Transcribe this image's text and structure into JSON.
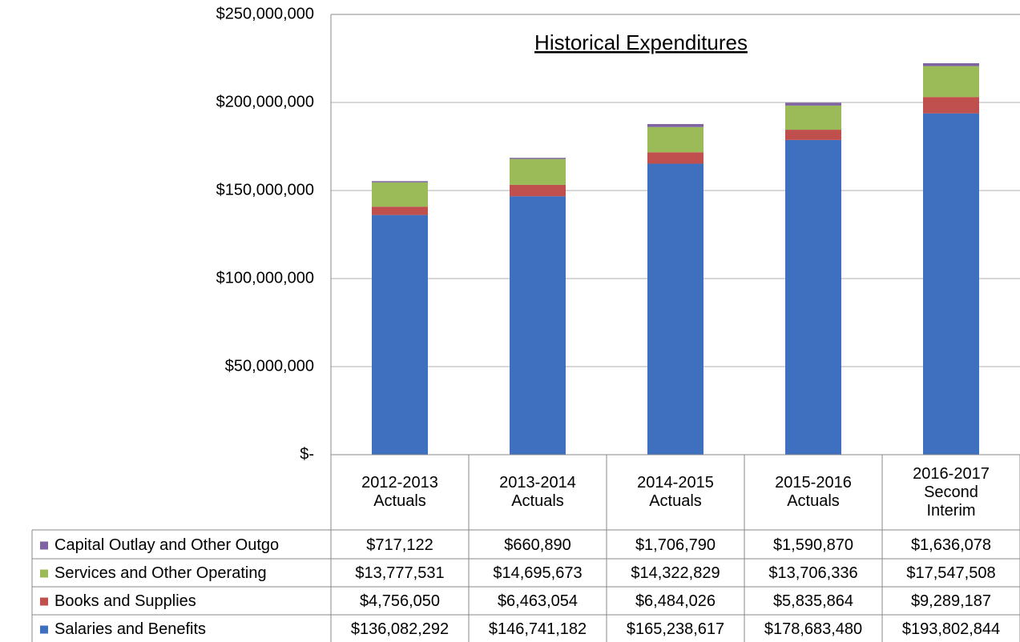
{
  "chart_data": {
    "type": "bar",
    "stacked": true,
    "title": "Historical Expenditures",
    "categories": [
      "2012-2013\nActuals",
      "2013-2014\nActuals",
      "2014-2015\nActuals",
      "2015-2016\nActuals",
      "2016-2017\nSecond\nInterim"
    ],
    "series": [
      {
        "name": "Capital Outlay and Other Outgo",
        "color": "#8064a2",
        "values": [
          717122,
          660890,
          1706790,
          1590870,
          1636078
        ],
        "value_labels": [
          "$717,122",
          "$660,890",
          "$1,706,790",
          "$1,590,870",
          "$1,636,078"
        ]
      },
      {
        "name": "Services and Other Operating",
        "color": "#9bbb59",
        "values": [
          13777531,
          14695673,
          14322829,
          13706336,
          17547508
        ],
        "value_labels": [
          "$13,777,531",
          "$14,695,673",
          "$14,322,829",
          "$13,706,336",
          "$17,547,508"
        ]
      },
      {
        "name": "Books and Supplies",
        "color": "#c0504d",
        "values": [
          4756050,
          6463054,
          6484026,
          5835864,
          9289187
        ],
        "value_labels": [
          "$4,756,050",
          "$6,463,054",
          "$6,484,026",
          "$5,835,864",
          "$9,289,187"
        ]
      },
      {
        "name": "Salaries and Benefits",
        "color": "#3f6fbf",
        "values": [
          136082292,
          146741182,
          165238617,
          178683480,
          193802844
        ],
        "value_labels": [
          "$136,082,292",
          "$146,741,182",
          "$165,238,617",
          "$178,683,480",
          "$193,802,844"
        ]
      }
    ],
    "ylim": [
      0,
      250000000
    ],
    "yticks": [
      {
        "value": 0,
        "label": "$-"
      },
      {
        "value": 50000000,
        "label": "$50,000,000"
      },
      {
        "value": 100000000,
        "label": "$100,000,000"
      },
      {
        "value": 150000000,
        "label": "$150,000,000"
      },
      {
        "value": 200000000,
        "label": "$200,000,000"
      },
      {
        "value": 250000000,
        "label": "$250,000,000"
      }
    ],
    "grid": true
  }
}
